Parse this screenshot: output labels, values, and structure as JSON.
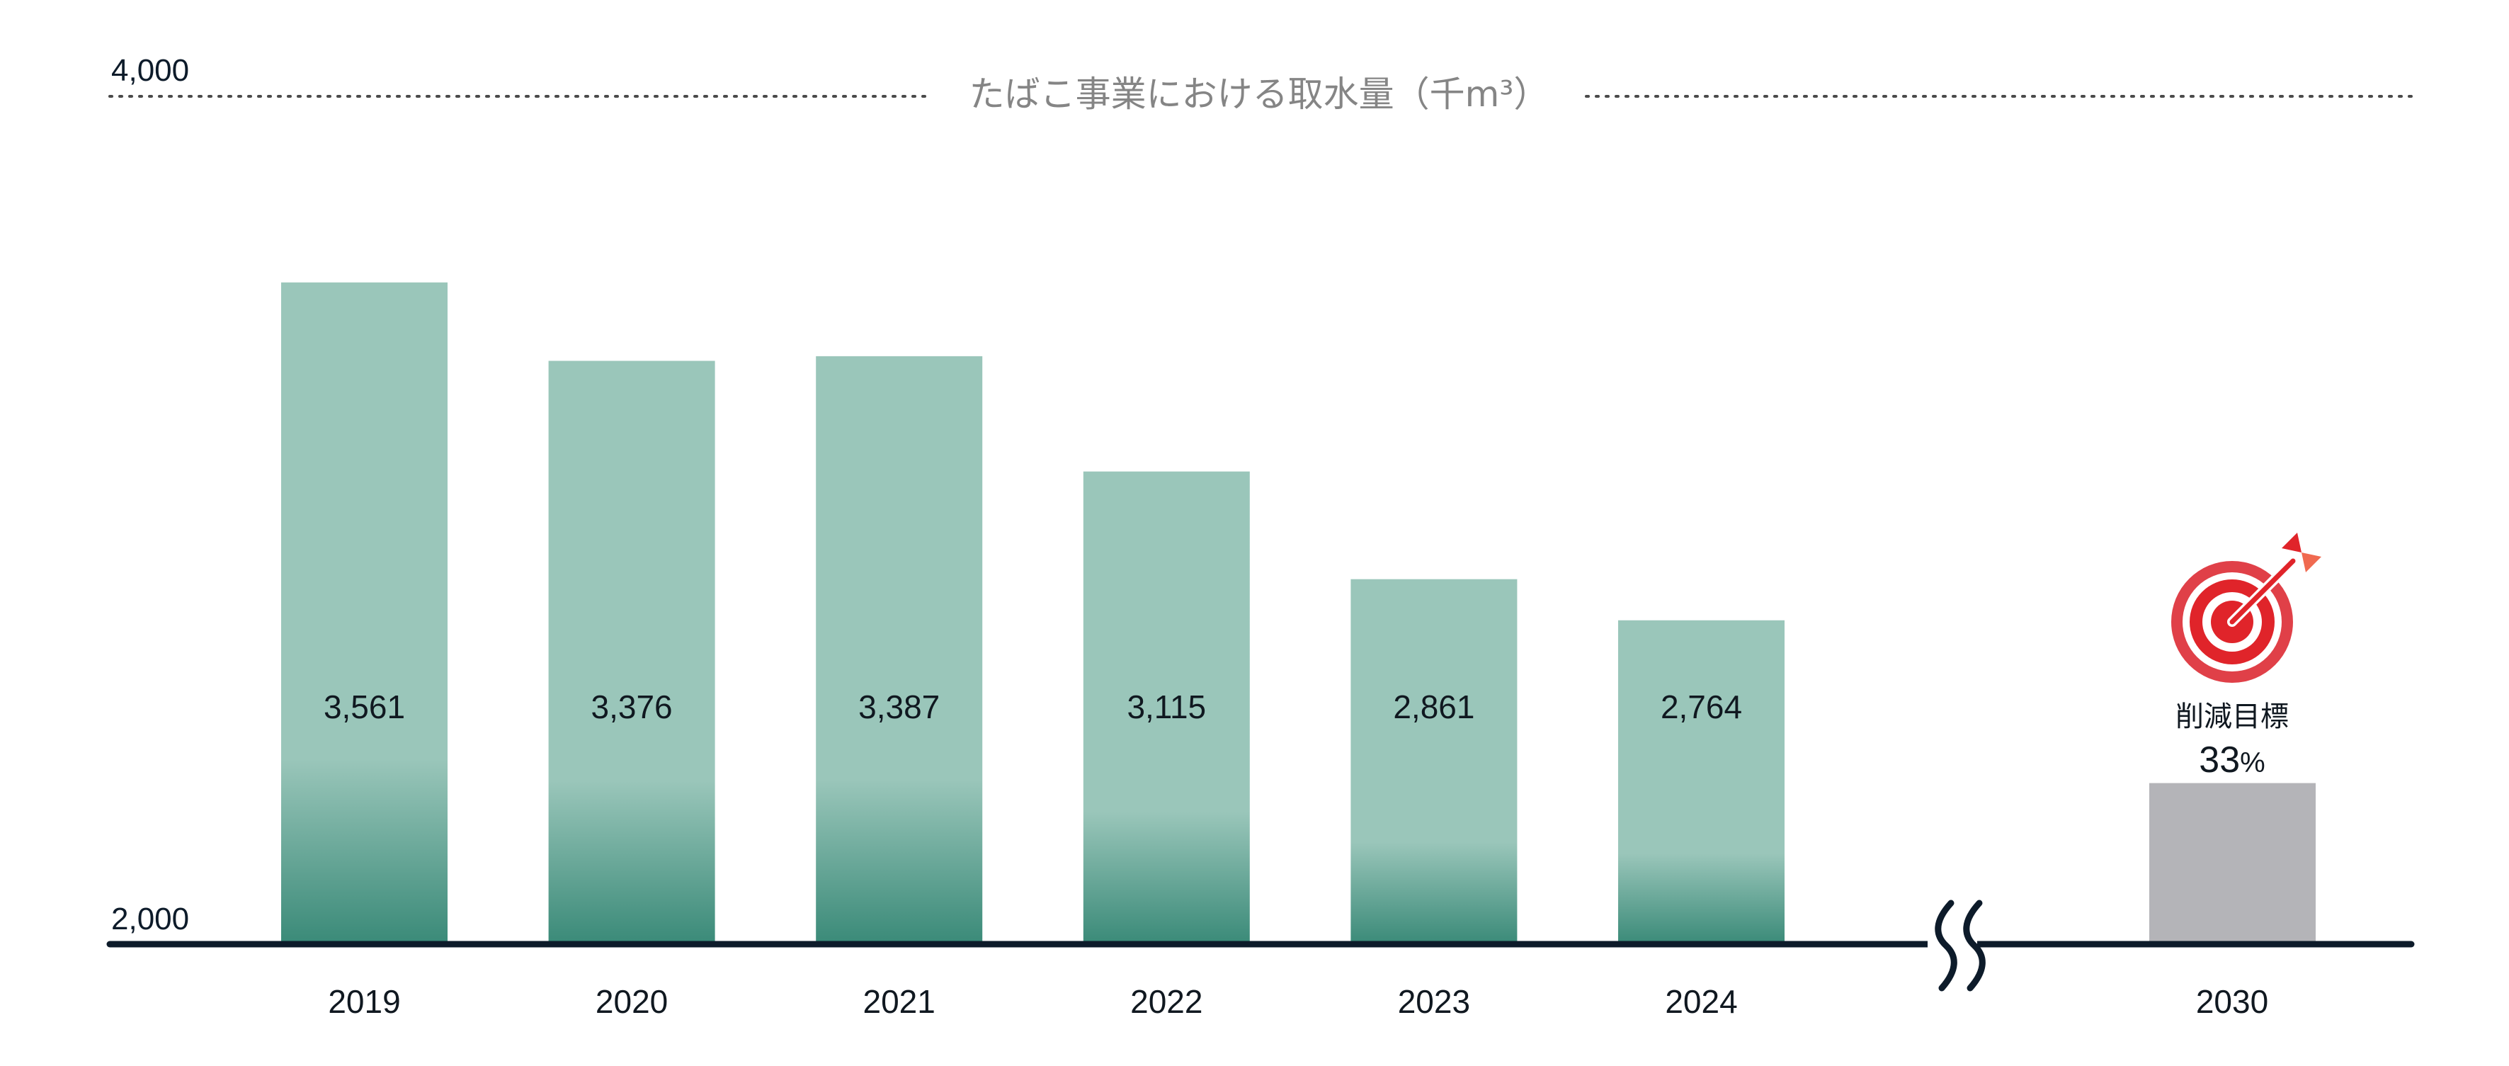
{
  "chart_data": {
    "type": "bar",
    "title": "たばこ事業における取水量（千m³）",
    "categories": [
      "2019",
      "2020",
      "2021",
      "2022",
      "2023",
      "2024"
    ],
    "values": [
      3561,
      3376,
      3387,
      3115,
      2861,
      2764
    ],
    "value_labels": [
      "3,561",
      "3,376",
      "3,387",
      "3,115",
      "2,861",
      "2,764"
    ],
    "ylim": [
      2000,
      4000
    ],
    "y_tick_labels": [
      {
        "value": 4000,
        "label": "4,000"
      },
      {
        "value": 2000,
        "label": "2,000"
      }
    ],
    "axis_break": true,
    "target": {
      "category": "2030",
      "value": 2380,
      "label": "削減目標",
      "reduction": "33",
      "reduction_unit": "%"
    },
    "colors": {
      "bar_top": "#9ac6ba",
      "bar_bottom": "#3a8a78",
      "target_bar": "#b4b4b8",
      "axis": "#0d1b2a",
      "target_icon": "#e0242a",
      "title": "#858585"
    },
    "icon": "target-dartboard-icon"
  }
}
